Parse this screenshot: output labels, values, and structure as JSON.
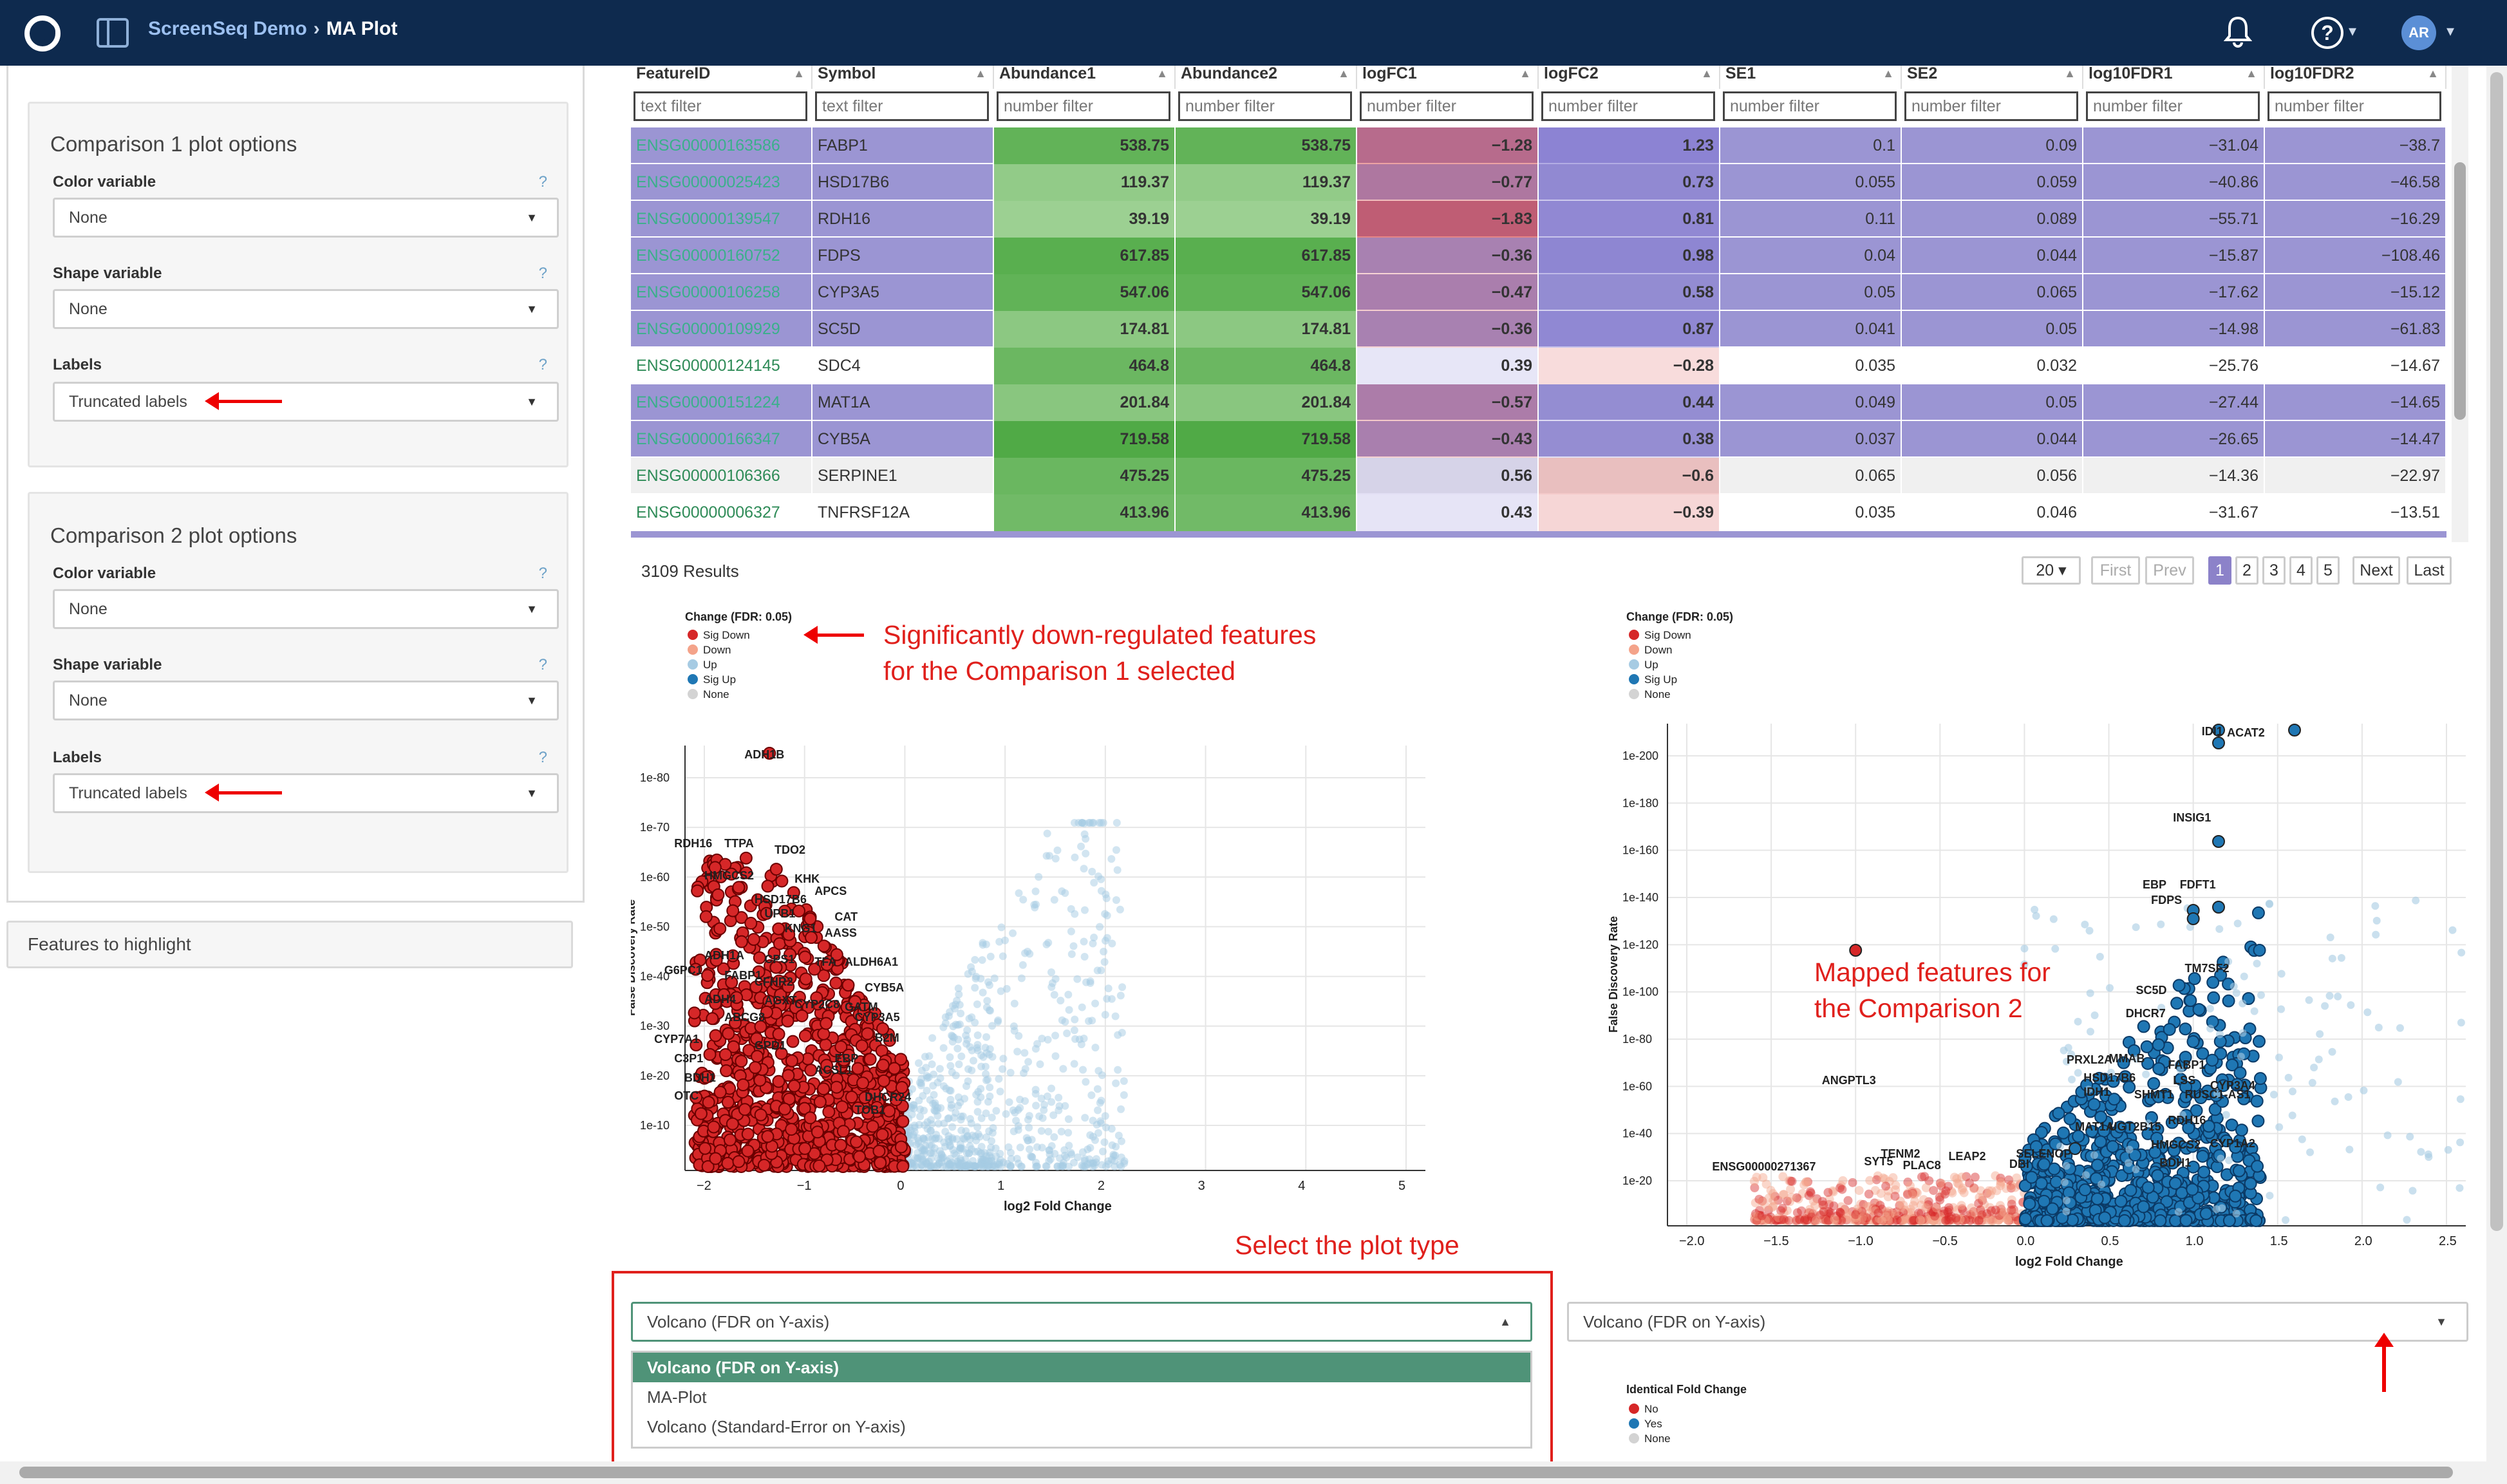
{
  "app": {
    "name": "ScreenSeq Demo",
    "page": "MA Plot",
    "avatar": "AR",
    "help": "?"
  },
  "sidebar": {
    "comparison1": {
      "title": "Comparison 1 plot options",
      "color_label": "Color variable",
      "color_value": "None",
      "shape_label": "Shape variable",
      "shape_value": "None",
      "labels_label": "Labels",
      "labels_value": "Truncated labels",
      "help": "?"
    },
    "comparison2": {
      "title": "Comparison 2 plot options",
      "color_label": "Color variable",
      "color_value": "None",
      "shape_label": "Shape variable",
      "shape_value": "None",
      "labels_label": "Labels",
      "labels_value": "Truncated labels",
      "help": "?"
    },
    "features_to_highlight": "Features to highlight"
  },
  "table": {
    "columns": [
      "FeatureID",
      "Symbol",
      "Abundance1",
      "Abundance2",
      "logFC1",
      "logFC2",
      "SE1",
      "SE2",
      "log10FDR1",
      "log10FDR2"
    ],
    "filters": [
      "text filter",
      "text filter",
      "number filter",
      "number filter",
      "number filter",
      "number filter",
      "number filter",
      "number filter",
      "number filter",
      "number filter"
    ],
    "rows": [
      {
        "selected": true,
        "cells": [
          "ENSG00000163586",
          "FABP1",
          "538.75",
          "538.75",
          "−1.28",
          "1.23",
          "0.1",
          "0.09",
          "−31.04",
          "−38.7"
        ]
      },
      {
        "selected": true,
        "cells": [
          "ENSG00000025423",
          "HSD17B6",
          "119.37",
          "119.37",
          "−0.77",
          "0.73",
          "0.055",
          "0.059",
          "−40.86",
          "−46.58"
        ]
      },
      {
        "selected": true,
        "cells": [
          "ENSG00000139547",
          "RDH16",
          "39.19",
          "39.19",
          "−1.83",
          "0.81",
          "0.11",
          "0.089",
          "−55.71",
          "−16.29"
        ]
      },
      {
        "selected": true,
        "cells": [
          "ENSG00000160752",
          "FDPS",
          "617.85",
          "617.85",
          "−0.36",
          "0.98",
          "0.04",
          "0.044",
          "−15.87",
          "−108.46"
        ]
      },
      {
        "selected": true,
        "cells": [
          "ENSG00000106258",
          "CYP3A5",
          "547.06",
          "547.06",
          "−0.47",
          "0.58",
          "0.05",
          "0.065",
          "−17.62",
          "−15.12"
        ]
      },
      {
        "selected": true,
        "cells": [
          "ENSG00000109929",
          "SC5D",
          "174.81",
          "174.81",
          "−0.36",
          "0.87",
          "0.041",
          "0.05",
          "−14.98",
          "−61.83"
        ]
      },
      {
        "selected": false,
        "cells": [
          "ENSG00000124145",
          "SDC4",
          "464.8",
          "464.8",
          "0.39",
          "−0.28",
          "0.035",
          "0.032",
          "−25.76",
          "−14.67"
        ]
      },
      {
        "selected": true,
        "cells": [
          "ENSG00000151224",
          "MAT1A",
          "201.84",
          "201.84",
          "−0.57",
          "0.44",
          "0.049",
          "0.05",
          "−27.44",
          "−14.65"
        ]
      },
      {
        "selected": true,
        "cells": [
          "ENSG00000166347",
          "CYB5A",
          "719.58",
          "719.58",
          "−0.43",
          "0.38",
          "0.037",
          "0.044",
          "−26.65",
          "−14.47"
        ]
      },
      {
        "selected": false,
        "cells": [
          "ENSG00000106366",
          "SERPINE1",
          "475.25",
          "475.25",
          "0.56",
          "−0.6",
          "0.065",
          "0.056",
          "−14.36",
          "−22.97"
        ]
      },
      {
        "selected": false,
        "cells": [
          "ENSG00000006327",
          "TNFRSF12A",
          "413.96",
          "413.96",
          "0.43",
          "−0.39",
          "0.035",
          "0.046",
          "−31.67",
          "−13.51"
        ]
      }
    ],
    "results": "3109 Results",
    "pager": {
      "page_size": "20",
      "first": "First",
      "prev": "Prev",
      "pages": [
        "1",
        "2",
        "3",
        "4",
        "5"
      ],
      "next": "Next",
      "last": "Last"
    }
  },
  "annotations": {
    "sig_down": "Significantly down-regulated features\nfor the Comparison 1 selected",
    "mapped": "Mapped features for\nthe Comparison 2",
    "plot_type": "Select the plot type"
  },
  "plot1": {
    "legend_title": "Change (FDR: 0.05)",
    "legend": [
      "Sig Down",
      "Down",
      "Up",
      "Sig Up",
      "None"
    ],
    "xlabel": "log2 Fold Change",
    "ylabel": "False Discovery Rate",
    "xticks": [
      "−2",
      "−1",
      "0",
      "1",
      "2",
      "3",
      "4",
      "5"
    ],
    "yticks": [
      "1e-80",
      "1e-70",
      "1e-60",
      "1e-50",
      "1e-40",
      "1e-30",
      "1e-20",
      "1e-10"
    ],
    "labels": [
      "ADH1B",
      "RDH16",
      "TTPA",
      "TDO2",
      "HMGCS2",
      "KHK",
      "APCS",
      "HSD17B6",
      "CAT",
      "UPB1",
      "KNG1",
      "AASS",
      "ADH1A",
      "CPS1",
      "TFA",
      "ALDH6A1",
      "G6PC1",
      "FABP1",
      "CFHR2",
      "ADH4",
      "AGXT",
      "CYP2C8",
      "CYB5A",
      "GATM",
      "ABCG8",
      "CYP3A5",
      "CYP7A1",
      "GPD1",
      "B2M",
      "C3P1",
      "EBP",
      "BDH1",
      "ACSL1",
      "OTC",
      "DHCR24",
      "TOB1"
    ],
    "select_value": "Volcano (FDR on Y-axis)",
    "options": [
      "Volcano (FDR on Y-axis)",
      "MA-Plot",
      "Volcano (Standard-Error on Y-axis)"
    ]
  },
  "plot2": {
    "legend_title": "Change (FDR: 0.05)",
    "legend": [
      "Sig Down",
      "Down",
      "Up",
      "Sig Up",
      "None"
    ],
    "xlabel": "log2 Fold Change",
    "ylabel": "False Discovery Rate",
    "xticks": [
      "−2.0",
      "−1.5",
      "−1.0",
      "−0.5",
      "0.0",
      "0.5",
      "1.0",
      "1.5",
      "2.0",
      "2.5"
    ],
    "yticks": [
      "1e-200",
      "1e-180",
      "1e-160",
      "1e-140",
      "1e-120",
      "1e-100",
      "1e-80",
      "1e-60",
      "1e-40",
      "1e-20"
    ],
    "labels": [
      "IDI1",
      "ACAT2",
      "INSIG1",
      "EBP",
      "FDFT1",
      "FDPS",
      "TM7SF2",
      "SC5D",
      "DHCR7",
      "PRXL2A",
      "MMAB",
      "FABP1",
      "HSD17B6",
      "LSS",
      "CYP3A4",
      "IDH1",
      "SHMT1",
      "RUSC1-AS1",
      "ANGPTL3",
      "MAT1A",
      "UGT2B15",
      "RDH16",
      "HMGCS2",
      "CYP1A2",
      "TENM2",
      "LEAP2",
      "SELENOP",
      "BDH1",
      "SYT5",
      "PLAC8",
      "DBI",
      "ENSG00000271367"
    ],
    "select_value": "Volcano (FDR on Y-axis)",
    "identical_title": "Identical Fold Change",
    "identical_legend": [
      "No",
      "Yes",
      "None"
    ]
  },
  "colors": {
    "topbar": "#0e2a4e",
    "sig_down": "#d62728",
    "down": "#f4a38a",
    "up": "#a6cbe3",
    "sig_up": "#1f77b4",
    "none": "#d3d3d3",
    "selected_row": "#9b95d3",
    "annotation": "#e0201c"
  }
}
